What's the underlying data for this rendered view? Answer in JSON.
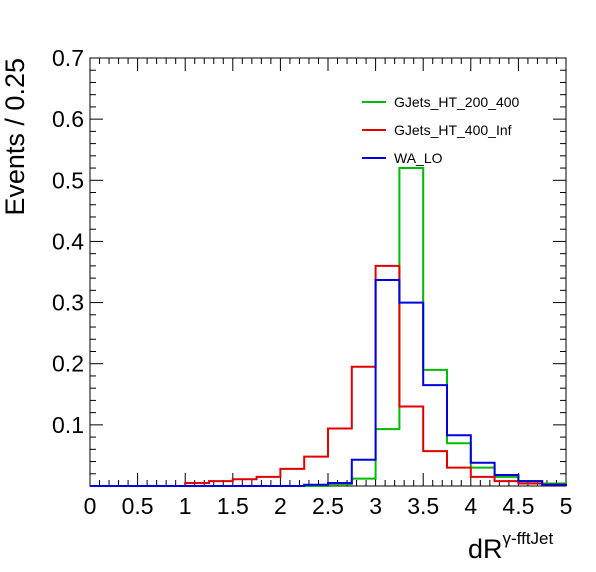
{
  "chart_data": {
    "type": "line",
    "xlabel_main": "dR",
    "xlabel_sup": "γ-fftJet",
    "ylabel": "Events / 0.25",
    "xlim": [
      0,
      5
    ],
    "ylim": [
      0,
      0.7
    ],
    "x_ticks": [
      "0",
      "0.5",
      "1",
      "1.5",
      "2",
      "2.5",
      "3",
      "3.5",
      "4",
      "4.5",
      "5"
    ],
    "y_ticks": [
      "0.1",
      "0.2",
      "0.3",
      "0.4",
      "0.5",
      "0.6",
      "0.7"
    ],
    "bin_width": 0.25,
    "bin_edges": [
      0,
      0.25,
      0.5,
      0.75,
      1.0,
      1.25,
      1.5,
      1.75,
      2.0,
      2.25,
      2.5,
      2.75,
      3.0,
      3.25,
      3.5,
      3.75,
      4.0,
      4.25,
      4.5,
      4.75,
      5.0
    ],
    "legend_position": "top-right",
    "series": [
      {
        "name": "GJets_HT_200_400",
        "color": "#00bb00",
        "values": [
          0,
          0,
          0,
          0,
          0,
          0,
          0,
          0,
          0,
          0,
          0.003,
          0.012,
          0.093,
          0.52,
          0.19,
          0.07,
          0.03,
          0.015,
          0.008,
          0.004
        ]
      },
      {
        "name": "GJets_HT_400_Inf",
        "color": "#e00000",
        "values": [
          0,
          0,
          0,
          0,
          0.005,
          0.008,
          0.011,
          0.015,
          0.028,
          0.048,
          0.094,
          0.195,
          0.36,
          0.13,
          0.057,
          0.03,
          0.015,
          0.008,
          0.004,
          0.002
        ]
      },
      {
        "name": "WA_LO",
        "color": "#0000dd",
        "values": [
          0,
          0,
          0,
          0,
          0,
          0,
          0,
          0,
          0,
          0.002,
          0.005,
          0.043,
          0.337,
          0.3,
          0.165,
          0.083,
          0.038,
          0.018,
          0.008,
          0.002
        ]
      }
    ]
  }
}
